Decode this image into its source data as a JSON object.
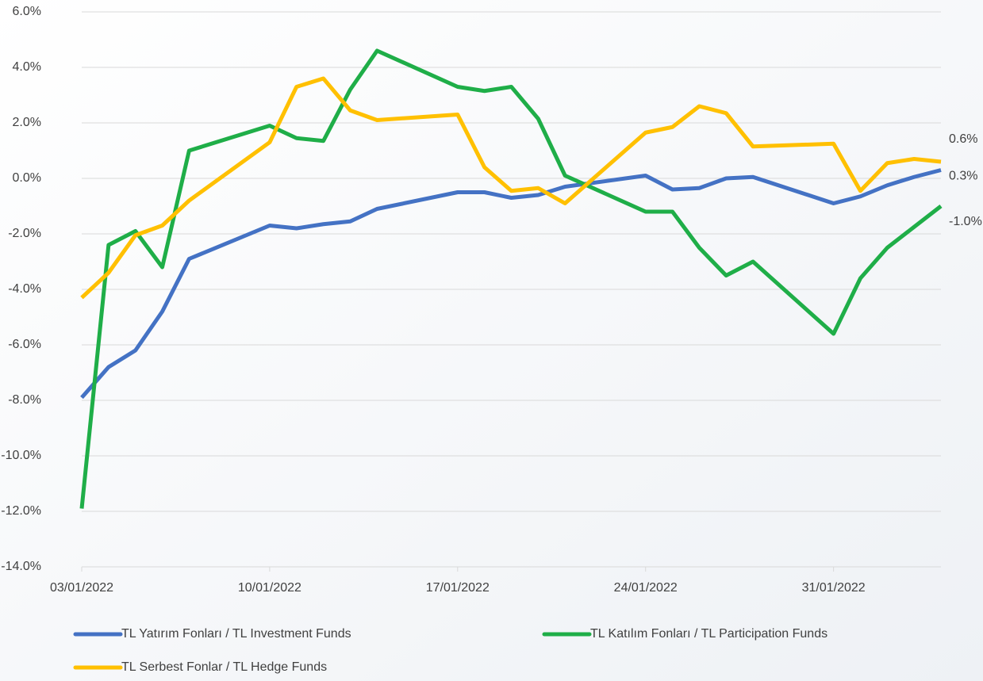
{
  "chart_data": {
    "type": "line",
    "x": [
      "03/01/2022",
      "04/01/2022",
      "05/01/2022",
      "06/01/2022",
      "07/01/2022",
      "10/01/2022",
      "11/01/2022",
      "12/01/2022",
      "13/01/2022",
      "14/01/2022",
      "17/01/2022",
      "18/01/2022",
      "19/01/2022",
      "20/01/2022",
      "21/01/2022",
      "24/01/2022",
      "25/01/2022",
      "26/01/2022",
      "27/01/2022",
      "28/01/2022",
      "31/01/2022",
      "01/02/2022",
      "02/02/2022",
      "03/02/2022",
      "04/02/2022"
    ],
    "xlim": [
      "03/01/2022",
      "04/02/2022"
    ],
    "xticks": [
      "03/01/2022",
      "10/01/2022",
      "17/01/2022",
      "24/01/2022",
      "31/01/2022"
    ],
    "ylim": [
      -14,
      6
    ],
    "yticks": [
      {
        "value": -14,
        "label": "-14.0%"
      },
      {
        "value": -12,
        "label": "-12.0%"
      },
      {
        "value": -10,
        "label": "-10.0%"
      },
      {
        "value": -8,
        "label": "-8.0%"
      },
      {
        "value": -6,
        "label": "-6.0%"
      },
      {
        "value": -4,
        "label": "-4.0%"
      },
      {
        "value": -2,
        "label": "-2.0%"
      },
      {
        "value": 0,
        "label": "0.0%"
      },
      {
        "value": 2,
        "label": "2.0%"
      },
      {
        "value": 4,
        "label": "4.0%"
      },
      {
        "value": 6,
        "label": "6.0%"
      }
    ],
    "grid": true,
    "legend": "bottom",
    "series": [
      {
        "name": "TL Yatırım Fonları / TL Investment Funds",
        "color": "#4472c4",
        "values": [
          -7.9,
          -6.8,
          -6.2,
          -4.8,
          -2.9,
          -1.7,
          -1.8,
          -1.65,
          -1.55,
          -1.1,
          -0.5,
          -0.5,
          -0.7,
          -0.6,
          -0.3,
          0.1,
          -0.4,
          -0.35,
          0.0,
          0.05,
          -0.9,
          -0.65,
          -0.25,
          0.05,
          0.3
        ],
        "value_labels": [
          null,
          null,
          null,
          null,
          null,
          null,
          null,
          null,
          null,
          null,
          null,
          null,
          null,
          null,
          null,
          null,
          null,
          null,
          null,
          null,
          null,
          null,
          null,
          null,
          "0.3%"
        ]
      },
      {
        "name": "TL Katılım Fonları / TL Participation Funds",
        "color": "#1fae48",
        "values": [
          -11.9,
          -2.4,
          -1.9,
          -3.2,
          1.0,
          1.9,
          1.45,
          1.35,
          3.2,
          4.6,
          3.3,
          3.15,
          3.3,
          2.15,
          0.1,
          -1.2,
          -1.2,
          -2.5,
          -3.5,
          -3.0,
          -5.6,
          -3.6,
          -2.5,
          -1.75,
          -1.0
        ],
        "value_labels": [
          null,
          null,
          null,
          null,
          null,
          null,
          null,
          null,
          null,
          null,
          null,
          null,
          null,
          null,
          null,
          null,
          null,
          null,
          null,
          null,
          null,
          null,
          null,
          null,
          "-1.0%"
        ]
      },
      {
        "name": "TL Serbest Fonlar / TL Hedge Funds",
        "color": "#ffc000",
        "values": [
          -4.3,
          -3.4,
          -2.05,
          -1.7,
          -0.8,
          1.3,
          3.3,
          3.6,
          2.45,
          2.1,
          2.3,
          0.4,
          -0.45,
          -0.35,
          -0.9,
          1.65,
          1.85,
          2.6,
          2.35,
          1.15,
          1.25,
          -0.45,
          0.55,
          0.7,
          0.6
        ],
        "value_labels": [
          null,
          null,
          null,
          null,
          null,
          null,
          null,
          null,
          null,
          null,
          null,
          null,
          null,
          null,
          null,
          null,
          null,
          null,
          null,
          null,
          null,
          null,
          null,
          null,
          "0.6%"
        ]
      }
    ]
  }
}
